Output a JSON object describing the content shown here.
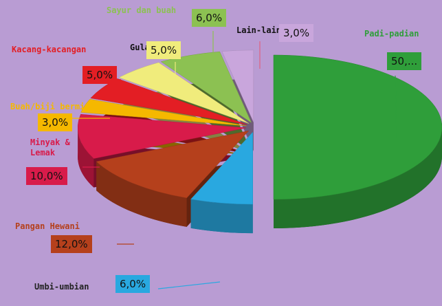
{
  "chart_data": {
    "type": "pie",
    "categories": [
      "Padi-padian",
      "Umbi-umbian",
      "Pangan Hewani",
      "Minyak & Lemak",
      "Buah/biji berminyak",
      "Kacang-kacangan",
      "Gula",
      "Sayur dan buah",
      "Lain-lain"
    ],
    "values": [
      50,
      6,
      12,
      10,
      3,
      5,
      5,
      6,
      3
    ],
    "value_labels": [
      "50,...",
      "6,0%",
      "12,0%",
      "10,0%",
      "3,0%",
      "5,0%",
      "5,0%",
      "6,0%",
      "3,0%"
    ],
    "colors": [
      "#2f9e3a",
      "#29a8e0",
      "#b5401c",
      "#d81b4a",
      "#f5b800",
      "#e31e24",
      "#f0ec7c",
      "#8cc152",
      "#c9a6dc"
    ]
  }
}
